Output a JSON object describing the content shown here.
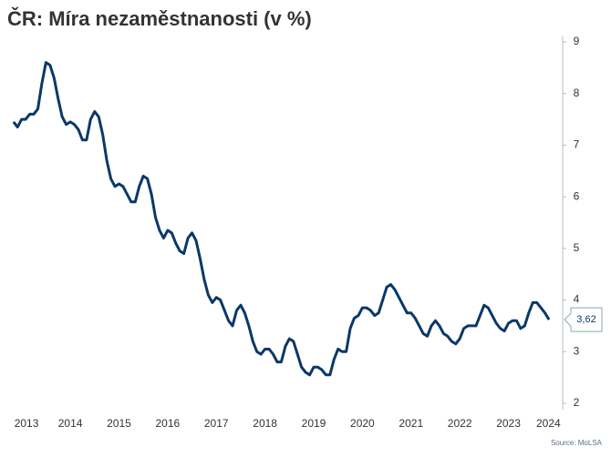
{
  "chart_data": {
    "type": "line",
    "title": "ČR: Míra nezaměstnanosti (v %)",
    "source": "Source: MoLSA",
    "x": [
      2013.333,
      2013.417,
      2013.5,
      2013.583,
      2013.667,
      2013.75,
      2013.833,
      2013.917,
      2014,
      2014.083,
      2014.167,
      2014.25,
      2014.333,
      2014.417,
      2014.5,
      2014.583,
      2014.667,
      2014.75,
      2014.833,
      2014.917,
      2015,
      2015.083,
      2015.167,
      2015.25,
      2015.333,
      2015.417,
      2015.5,
      2015.583,
      2015.667,
      2015.75,
      2015.833,
      2015.917,
      2016,
      2016.083,
      2016.167,
      2016.25,
      2016.333,
      2016.417,
      2016.5,
      2016.583,
      2016.667,
      2016.75,
      2016.833,
      2016.917,
      2017,
      2017.083,
      2017.167,
      2017.25,
      2017.333,
      2017.417,
      2017.5,
      2017.583,
      2017.667,
      2017.75,
      2017.833,
      2017.917,
      2018,
      2018.083,
      2018.167,
      2018.25,
      2018.333,
      2018.417,
      2018.5,
      2018.583,
      2018.667,
      2018.75,
      2018.833,
      2018.917,
      2019,
      2019.083,
      2019.167,
      2019.25,
      2019.333,
      2019.417,
      2019.5,
      2019.583,
      2019.667,
      2019.75,
      2019.833,
      2019.917,
      2020,
      2020.083,
      2020.167,
      2020.25,
      2020.333,
      2020.417,
      2020.5,
      2020.583,
      2020.667,
      2020.75,
      2020.833,
      2020.917,
      2021,
      2021.083,
      2021.167,
      2021.25,
      2021.333,
      2021.417,
      2021.5,
      2021.583,
      2021.667,
      2021.75,
      2021.833,
      2021.917,
      2022,
      2022.083,
      2022.167,
      2022.25,
      2022.333,
      2022.417,
      2022.5,
      2022.583,
      2022.667,
      2022.75,
      2022.833,
      2022.917,
      2023,
      2023.083,
      2023.167,
      2023.25,
      2023.333,
      2023.417,
      2023.5,
      2023.583,
      2023.667,
      2023.75,
      2023.833,
      2023.917,
      2024,
      2024.083,
      2024.167,
      2024.25,
      2024.333
    ],
    "values": [
      7.45,
      7.35,
      7.5,
      7.5,
      7.6,
      7.6,
      7.7,
      8.2,
      8.6,
      8.55,
      8.3,
      7.9,
      7.55,
      7.4,
      7.45,
      7.4,
      7.3,
      7.1,
      7.1,
      7.5,
      7.65,
      7.55,
      7.2,
      6.7,
      6.35,
      6.2,
      6.25,
      6.2,
      6.05,
      5.9,
      5.9,
      6.2,
      6.4,
      6.35,
      6.05,
      5.6,
      5.35,
      5.2,
      5.35,
      5.3,
      5.1,
      4.95,
      4.9,
      5.2,
      5.3,
      5.15,
      4.8,
      4.4,
      4.1,
      3.95,
      4.05,
      4.0,
      3.8,
      3.6,
      3.5,
      3.8,
      3.9,
      3.75,
      3.5,
      3.2,
      3.0,
      2.95,
      3.05,
      3.05,
      2.95,
      2.8,
      2.8,
      3.1,
      3.25,
      3.2,
      2.95,
      2.7,
      2.6,
      2.55,
      2.7,
      2.7,
      2.65,
      2.55,
      2.55,
      2.85,
      3.05,
      3.0,
      3.0,
      3.45,
      3.65,
      3.7,
      3.85,
      3.85,
      3.8,
      3.7,
      3.75,
      4.0,
      4.25,
      4.3,
      4.2,
      4.05,
      3.9,
      3.75,
      3.75,
      3.65,
      3.5,
      3.35,
      3.3,
      3.5,
      3.6,
      3.5,
      3.35,
      3.3,
      3.2,
      3.15,
      3.25,
      3.45,
      3.5,
      3.5,
      3.5,
      3.7,
      3.9,
      3.85,
      3.7,
      3.55,
      3.45,
      3.4,
      3.55,
      3.6,
      3.6,
      3.45,
      3.5,
      3.75,
      3.95,
      3.95,
      3.85,
      3.75,
      3.62
    ],
    "color": "#0b3868",
    "annotations": [
      {
        "value": 3.62,
        "label": "3,62"
      }
    ],
    "xlim": [
      2013.056,
      2024.52
    ],
    "xticks": [
      {
        "value": 2013.6,
        "label": "2013"
      },
      {
        "value": 2014.5,
        "label": "2014"
      },
      {
        "value": 2015.5,
        "label": "2015"
      },
      {
        "value": 2016.5,
        "label": "2016"
      },
      {
        "value": 2017.5,
        "label": "2017"
      },
      {
        "value": 2018.5,
        "label": "2018"
      },
      {
        "value": 2019.5,
        "label": "2019"
      },
      {
        "value": 2020.5,
        "label": "2020"
      },
      {
        "value": 2021.5,
        "label": "2021"
      },
      {
        "value": 2022.5,
        "label": "2022"
      },
      {
        "value": 2023.5,
        "label": "2023"
      },
      {
        "value": 2024.32,
        "label": "2024"
      }
    ],
    "ylim": [
      2,
      9
    ],
    "yticks": [
      2,
      3,
      4,
      5,
      6,
      7,
      8,
      9
    ],
    "y_axis_side": "right"
  }
}
